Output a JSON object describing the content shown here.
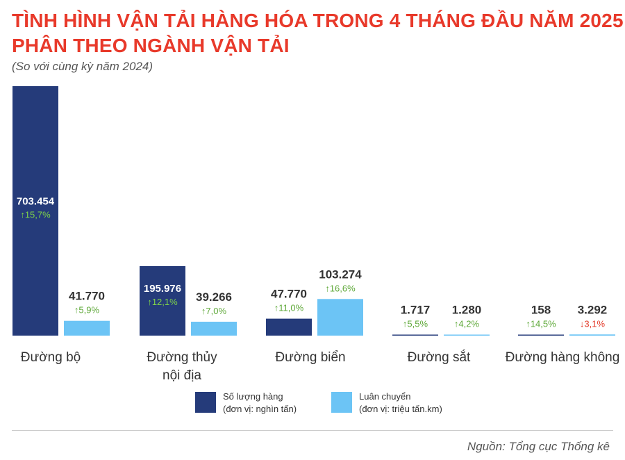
{
  "header": {
    "title_line1": "TÌNH HÌNH VẬN TẢI HÀNG HÓA TRONG 4 THÁNG ĐẦU NĂM 2025",
    "title_line2": "PHÂN THEO NGÀNH VẬN TẢI",
    "subtitle": "(So với cùng kỳ năm 2024)"
  },
  "legend": {
    "items": [
      {
        "line1": "Số lượng hàng",
        "line2": "(đơn vị: nghìn tấn)"
      },
      {
        "line1": "Luân chuyển",
        "line2": "(đơn vị: triệu tấn.km)"
      }
    ]
  },
  "footer": {
    "source": "Nguồn: Tổng cục Thống kê"
  },
  "colors": {
    "title": "#e8392a",
    "volume": "#253b7a",
    "turnover": "#6cc4f5",
    "up": "#5ea838",
    "down": "#e33a2a",
    "value_dark": "#333333",
    "value_light": "#ffffff"
  },
  "chart_data": {
    "type": "bar",
    "categories": [
      [
        "Đường bộ"
      ],
      [
        "Đường thủy",
        "nội địa"
      ],
      [
        "Đường biển"
      ],
      [
        "Đường sắt"
      ],
      [
        "Đường hàng không"
      ]
    ],
    "series": [
      {
        "name": "Số lượng hàng",
        "values": [
          703454,
          195976,
          47770,
          1717,
          158
        ],
        "labels": [
          "703.454",
          "195.976",
          "47.770",
          "1.717",
          "158"
        ],
        "changes": [
          "15,7%",
          "12,1%",
          "11,0%",
          "5,5%",
          "14,5%"
        ],
        "directions": [
          "up",
          "up",
          "up",
          "up",
          "up"
        ]
      },
      {
        "name": "Luân chuyển",
        "values": [
          41770,
          39266,
          103274,
          1280,
          3292
        ],
        "labels": [
          "41.770",
          "39.266",
          "103.274",
          "1.280",
          "3.292"
        ],
        "changes": [
          "5,9%",
          "7,0%",
          "16,6%",
          "4,2%",
          "3,1%"
        ],
        "directions": [
          "up",
          "up",
          "up",
          "up",
          "down"
        ]
      }
    ]
  }
}
